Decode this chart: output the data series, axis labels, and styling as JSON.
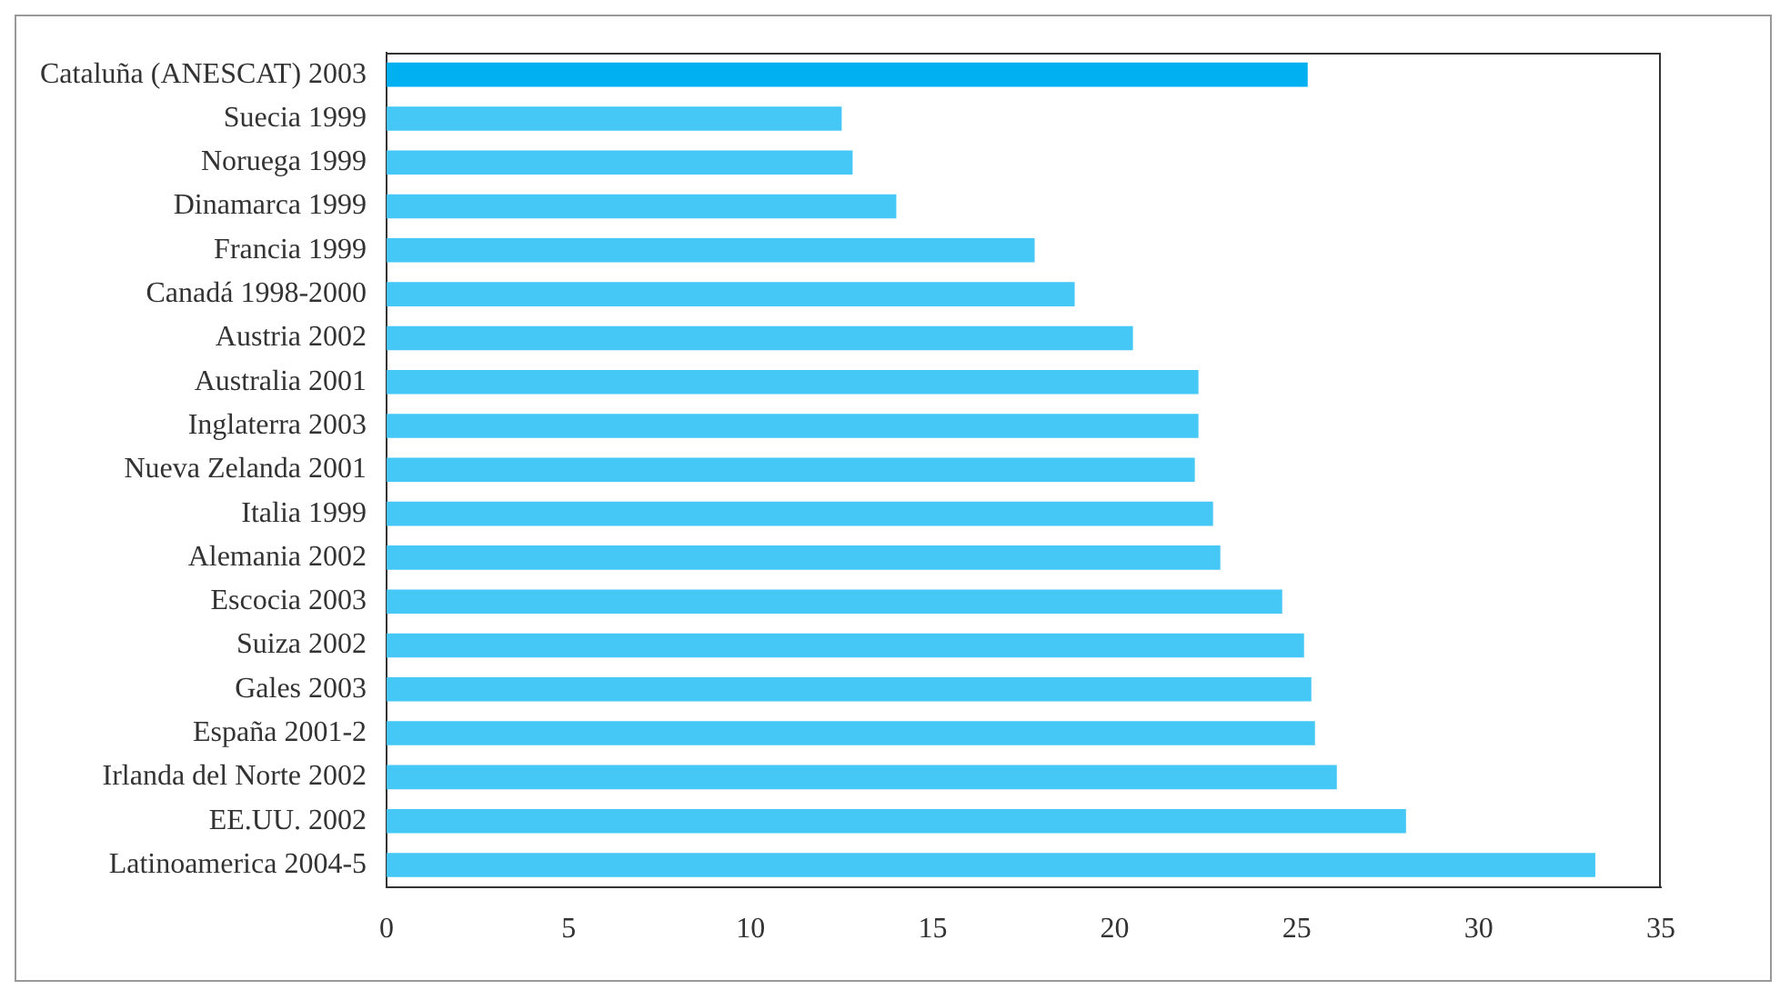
{
  "chart_data": {
    "type": "bar",
    "orientation": "horizontal",
    "categories": [
      "Cataluña (ANESCAT) 2003",
      "Suecia 1999",
      "Noruega 1999",
      "Dinamarca 1999",
      "Francia 1999",
      "Canadá 1998-2000",
      "Austria 2002",
      "Australia 2001",
      "Inglaterra 2003",
      "Nueva Zelanda 2001",
      "Italia 1999",
      "Alemania 2002",
      "Escocia 2003",
      "Suiza 2002",
      "Gales 2003",
      "España 2001-2",
      "Irlanda del Norte 2002",
      "EE.UU. 2002",
      "Latinoamerica 2004-5"
    ],
    "values": [
      25.3,
      12.5,
      12.8,
      14.0,
      17.8,
      18.9,
      20.5,
      22.3,
      22.3,
      22.2,
      22.7,
      22.9,
      24.6,
      25.2,
      25.4,
      25.5,
      26.1,
      28.0,
      33.2
    ],
    "colors": [
      "#00b0f0",
      "#45c8f5",
      "#45c8f5",
      "#45c8f5",
      "#45c8f5",
      "#45c8f5",
      "#45c8f5",
      "#45c8f5",
      "#45c8f5",
      "#45c8f5",
      "#45c8f5",
      "#45c8f5",
      "#45c8f5",
      "#45c8f5",
      "#45c8f5",
      "#45c8f5",
      "#45c8f5",
      "#45c8f5",
      "#45c8f5"
    ],
    "xlim": [
      0,
      35
    ],
    "xticks": [
      0,
      5,
      10,
      15,
      20,
      25,
      30,
      35
    ],
    "grid": false,
    "legend": false
  }
}
